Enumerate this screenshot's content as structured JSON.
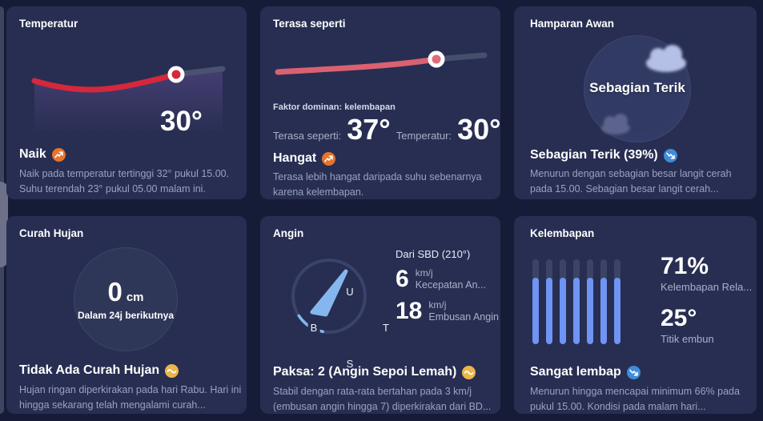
{
  "page": {
    "background": "#161c38",
    "card_background": "#272e52"
  },
  "colors": {
    "trend_up": "#e8732a",
    "trend_down": "#3f8cdb",
    "trend_steady": "#eab64a",
    "temp_line": "#d5283b",
    "feels_line": "#db6170",
    "future_line": "#4a5270",
    "compass_accent": "#85b7ee",
    "humidity_bar": "#6f94f4"
  },
  "cards": {
    "temperature": {
      "title": "Temperatur",
      "current_value": "30°",
      "headline": "Naik",
      "body": "Naik pada temperatur tertinggi 32° pukul 15.00. Suhu terendah 23° pukul 05.00 malam ini.",
      "chart_data": {
        "type": "line",
        "series": [
          {
            "name": "Temperatur",
            "values": [
              30,
              29,
              30,
              32,
              23
            ]
          }
        ],
        "annotations": {
          "current": 30,
          "high": 32,
          "high_time": "15.00",
          "low": 23,
          "low_time": "05.00"
        }
      }
    },
    "feels_like": {
      "title": "Terasa seperti",
      "dominant_factor": "Faktor dominan: kelembapan",
      "feels_label": "Terasa seperti:",
      "feels_value": "37°",
      "temp_label": "Temperatur:",
      "temp_value": "30°",
      "headline": "Hangat",
      "body": "Terasa lebih hangat daripada suhu sebenarnya karena kelembapan."
    },
    "cloud_cover": {
      "title": "Hamparan Awan",
      "gauge_label": "Sebagian Terik",
      "headline": "Sebagian Terik (39%)",
      "cloud_percent": 39,
      "body": "Menurun dengan sebagian besar langit cerah pada 15.00. Sebagian besar langit cerah..."
    },
    "precipitation": {
      "title": "Curah Hujan",
      "value": "0",
      "unit": "cm",
      "period": "Dalam 24j berikutnya",
      "headline": "Tidak Ada Curah Hujan",
      "body": "Hujan ringan diperkirakan pada hari Rabu. Hari ini hingga sekarang telah mengalami curah..."
    },
    "wind": {
      "title": "Angin",
      "direction_label": "Dari SBD (210°)",
      "direction_degrees": 210,
      "compass": {
        "north": "U",
        "east": "T",
        "south": "S",
        "west": "B"
      },
      "speed_value": "6",
      "speed_unit": "km/j",
      "speed_label": "Kecepatan An...",
      "gust_value": "18",
      "gust_unit": "km/j",
      "gust_label": "Embusan Angin",
      "headline": "Paksa: 2 (Angin Sepoi Lemah)",
      "body": "Stabil dengan rata-rata bertahan pada 3 km/j (embusan angin hingga 7) diperkirakan dari BD..."
    },
    "humidity": {
      "title": "Kelembapan",
      "value": "71%",
      "value_label": "Kelembapan Rela...",
      "dew_point": "25°",
      "dew_label": "Titik embun",
      "headline": "Sangat lembap",
      "bar_count": 7,
      "bar_fill_percent": 78,
      "body": "Menurun hingga mencapai minimum 66% pada pukul 15.00. Kondisi pada malam hari..."
    }
  }
}
